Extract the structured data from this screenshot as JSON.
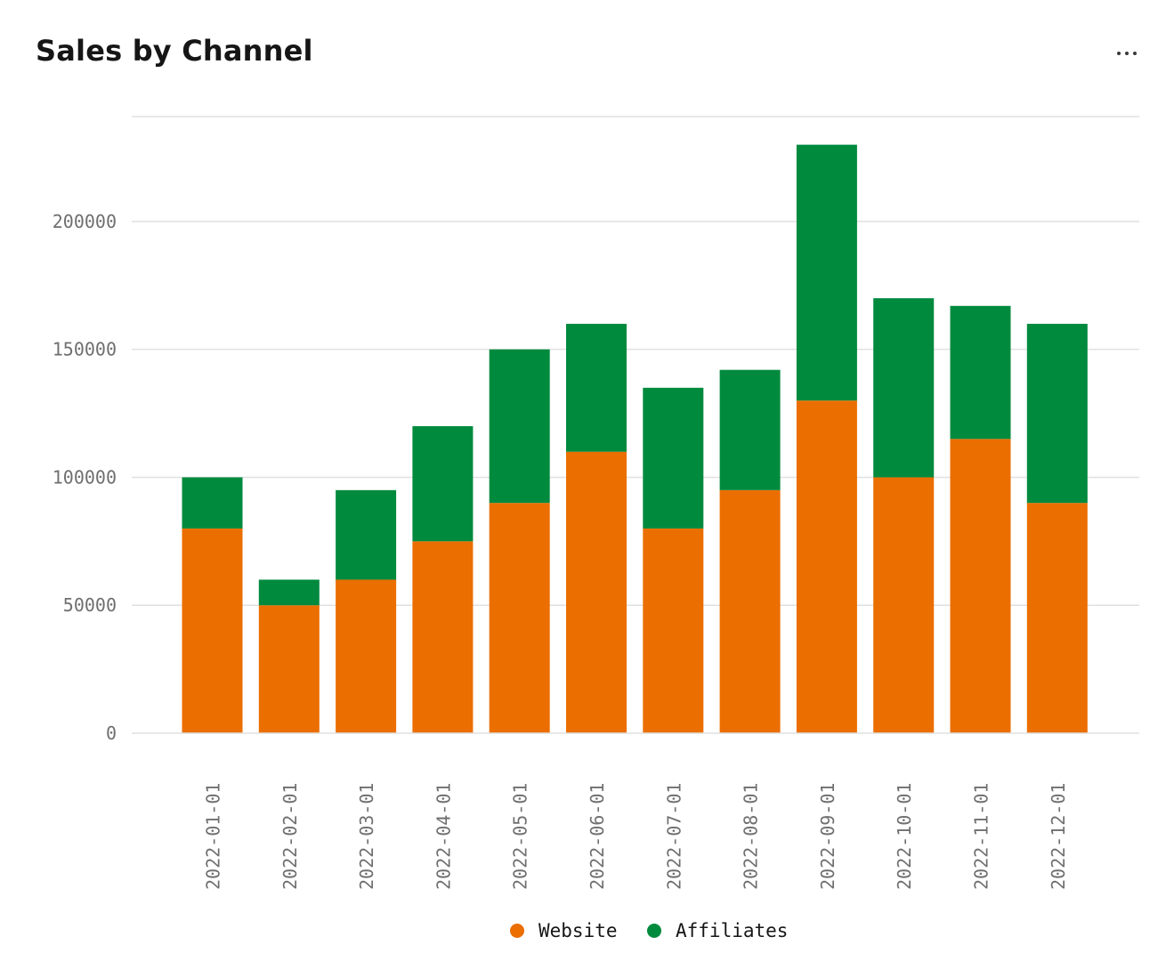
{
  "card": {
    "title": "Sales by Channel",
    "menu_icon": "overflow-menu-icon"
  },
  "chart_data": {
    "type": "bar",
    "stacked": true,
    "title": "Sales by Channel",
    "xlabel": "",
    "ylabel": "",
    "categories": [
      "2022-01-01",
      "2022-02-01",
      "2022-03-01",
      "2022-04-01",
      "2022-05-01",
      "2022-06-01",
      "2022-07-01",
      "2022-08-01",
      "2022-09-01",
      "2022-10-01",
      "2022-11-01",
      "2022-12-01"
    ],
    "series": [
      {
        "name": "Website",
        "color": "#eb6e00",
        "values": [
          80000,
          50000,
          60000,
          75000,
          90000,
          110000,
          80000,
          95000,
          130000,
          100000,
          115000,
          90000
        ]
      },
      {
        "name": "Affiliates",
        "color": "#008a3e",
        "values": [
          20000,
          10000,
          35000,
          45000,
          60000,
          50000,
          55000,
          47000,
          100000,
          70000,
          52000,
          70000
        ]
      }
    ],
    "ylim": [
      0,
      241000
    ],
    "yticks": [
      0,
      50000,
      100000,
      150000,
      200000
    ],
    "ytick_labels": [
      "0",
      "50000",
      "100000",
      "150000",
      "200000"
    ],
    "grid": true,
    "legend": {
      "position": "bottom-center",
      "entries": [
        "Website",
        "Affiliates"
      ]
    }
  }
}
